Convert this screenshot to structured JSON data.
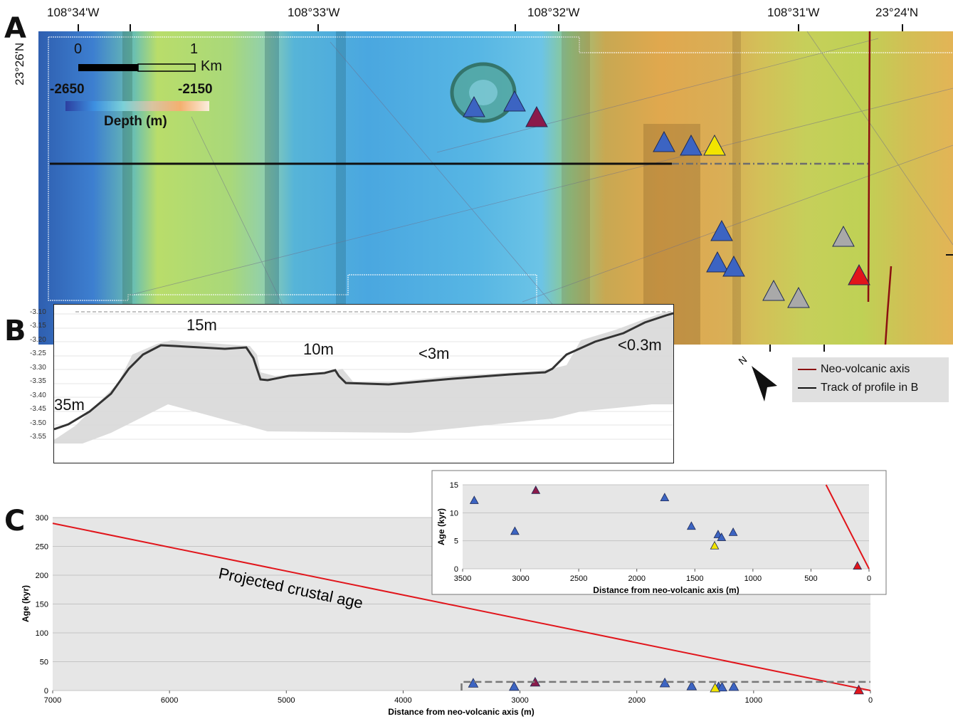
{
  "panels": {
    "a": "A",
    "b": "B",
    "c": "C"
  },
  "map": {
    "top_coords": [
      "108°34'W",
      "108°33'W",
      "108°32'W",
      "108°31'W",
      "23°24'N"
    ],
    "left_coord": "23°26'N",
    "scale_bar": {
      "start": "0",
      "end": "1",
      "unit": "Km"
    },
    "depth_legend": {
      "min": "-2650",
      "max": "-2150",
      "label": "Depth (m)"
    },
    "colors": {
      "blue": "#3c64c2",
      "purple": "#8a1a4a",
      "yellow": "#f2e400",
      "gray": "#a9a9a9",
      "red": "#e1151b",
      "axis_line": "#8b1010",
      "track_line": "#111111"
    }
  },
  "legend": {
    "neo_volcanic_axis": "Neo-volcanic axis",
    "track_of_profile": "Track of profile in B"
  },
  "profile": {
    "y_ticks": [
      "-3.10",
      "-3.15",
      "-3.20",
      "-3.25",
      "-3.30",
      "-3.35",
      "-3.40",
      "-3.45",
      "-3.50",
      "-3.55"
    ],
    "labels": [
      "15m",
      "10m",
      "<3m",
      "<0.3m",
      "35m"
    ]
  },
  "chart_data": [
    {
      "type": "scatter",
      "title": "",
      "xlabel": "Distance from neo-volcanic axis (m)",
      "ylabel": "Age (kyr)",
      "xlim": [
        7000,
        0
      ],
      "ylim": [
        0,
        300
      ],
      "x_ticks": [
        7000,
        6000,
        5000,
        4000,
        3000,
        2000,
        1000,
        0
      ],
      "y_ticks": [
        0,
        50,
        100,
        150,
        200,
        250,
        300
      ],
      "annotation": "Projected crustal age",
      "line": {
        "name": "Projected crustal age",
        "x": [
          7000,
          0
        ],
        "y": [
          290,
          0
        ],
        "color": "#e1151b"
      },
      "points": [
        {
          "x": 3400,
          "y": 12.2,
          "color": "#3c64c2"
        },
        {
          "x": 3050,
          "y": 6.7,
          "color": "#3c64c2"
        },
        {
          "x": 2870,
          "y": 14.0,
          "color": "#8a1a4a"
        },
        {
          "x": 1760,
          "y": 12.7,
          "color": "#3c64c2"
        },
        {
          "x": 1530,
          "y": 7.6,
          "color": "#3c64c2"
        },
        {
          "x": 1300,
          "y": 6.1,
          "color": "#3c64c2"
        },
        {
          "x": 1270,
          "y": 5.6,
          "color": "#3c64c2"
        },
        {
          "x": 1170,
          "y": 6.5,
          "color": "#3c64c2"
        },
        {
          "x": 1330,
          "y": 4.1,
          "color": "#f2e400"
        },
        {
          "x": 100,
          "y": 0.5,
          "color": "#e1151b"
        }
      ],
      "grid": true
    },
    {
      "type": "scatter",
      "title": "",
      "xlabel": "Distance from neo-volcanic axis (m)",
      "ylabel": "Age (kyr)",
      "xlim": [
        3500,
        0
      ],
      "ylim": [
        0,
        15
      ],
      "x_ticks": [
        3500,
        3000,
        2500,
        2000,
        1500,
        1000,
        500,
        0
      ],
      "y_ticks": [
        0,
        5,
        10,
        15
      ],
      "line": {
        "x": [
          370,
          0
        ],
        "y": [
          15,
          0
        ],
        "color": "#e1151b"
      },
      "points": [
        {
          "x": 3400,
          "y": 12.2,
          "color": "#3c64c2"
        },
        {
          "x": 3050,
          "y": 6.7,
          "color": "#3c64c2"
        },
        {
          "x": 2870,
          "y": 14.0,
          "color": "#8a1a4a"
        },
        {
          "x": 1760,
          "y": 12.7,
          "color": "#3c64c2"
        },
        {
          "x": 1530,
          "y": 7.6,
          "color": "#3c64c2"
        },
        {
          "x": 1300,
          "y": 6.1,
          "color": "#3c64c2"
        },
        {
          "x": 1270,
          "y": 5.6,
          "color": "#3c64c2"
        },
        {
          "x": 1170,
          "y": 6.5,
          "color": "#3c64c2"
        },
        {
          "x": 1330,
          "y": 4.1,
          "color": "#f2e400"
        },
        {
          "x": 100,
          "y": 0.5,
          "color": "#e1151b"
        }
      ],
      "grid": true
    }
  ]
}
